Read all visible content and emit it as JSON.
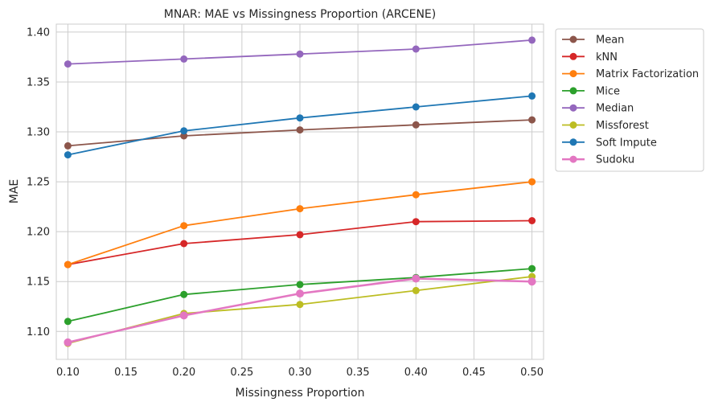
{
  "chart_data": {
    "type": "line",
    "title": "MNAR: MAE vs Missingness Proportion (ARCENE)",
    "xlabel": "Missingness Proportion",
    "ylabel": "MAE",
    "xlim": [
      0.09,
      0.51
    ],
    "ylim": [
      1.072,
      1.408
    ],
    "x_ticks": [
      0.1,
      0.15,
      0.2,
      0.25,
      0.3,
      0.35,
      0.4,
      0.45,
      0.5
    ],
    "x_tick_labels": [
      "0.10",
      "0.15",
      "0.20",
      "0.25",
      "0.30",
      "0.35",
      "0.40",
      "0.45",
      "0.50"
    ],
    "y_ticks": [
      1.1,
      1.15,
      1.2,
      1.25,
      1.3,
      1.35,
      1.4
    ],
    "y_tick_labels": [
      "1.10",
      "1.15",
      "1.20",
      "1.25",
      "1.30",
      "1.35",
      "1.40"
    ],
    "grid": true,
    "legend_position": "outside-right-top",
    "x": [
      0.1,
      0.2,
      0.3,
      0.4,
      0.5
    ],
    "series": [
      {
        "name": "Mean",
        "color": "#8c564b",
        "values": [
          1.286,
          1.296,
          1.302,
          1.307,
          1.312
        ]
      },
      {
        "name": "kNN",
        "color": "#d62728",
        "values": [
          1.167,
          1.188,
          1.197,
          1.21,
          1.211
        ]
      },
      {
        "name": "Matrix Factorization",
        "color": "#ff7f0e",
        "values": [
          1.167,
          1.206,
          1.223,
          1.237,
          1.25
        ]
      },
      {
        "name": "Mice",
        "color": "#2ca02c",
        "values": [
          1.11,
          1.137,
          1.147,
          1.154,
          1.163
        ]
      },
      {
        "name": "Median",
        "color": "#9467bd",
        "values": [
          1.368,
          1.373,
          1.378,
          1.383,
          1.392
        ]
      },
      {
        "name": "Missforest",
        "color": "#bcbd22",
        "values": [
          1.088,
          1.118,
          1.127,
          1.141,
          1.155
        ]
      },
      {
        "name": "Soft Impute",
        "color": "#1f77b4",
        "values": [
          1.277,
          1.301,
          1.314,
          1.325,
          1.336
        ]
      },
      {
        "name": "Sudoku",
        "color": "#e377c2",
        "values": [
          1.089,
          1.116,
          1.138,
          1.153,
          1.15
        ]
      }
    ]
  }
}
